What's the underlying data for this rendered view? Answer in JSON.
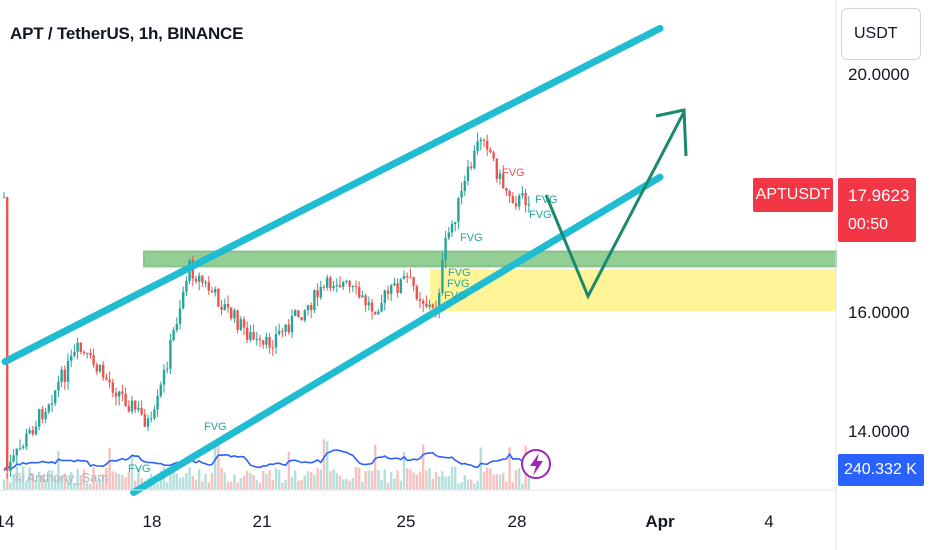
{
  "header": {
    "title": "APT / TetherUS, 1h, BINANCE"
  },
  "toolbar": {
    "currency_label": "USDT"
  },
  "watermark": "© Anthony_Sam",
  "badges": {
    "symbol": "APTUSDT",
    "last_price": "17.9623",
    "countdown": "00:50",
    "volume": "240.332 K",
    "symbol_color": "#f23645",
    "volume_color": "#2962ff"
  },
  "icons": {
    "lightning": "lightning-icon"
  },
  "colors": {
    "up_candle": "#26a69a",
    "down_candle": "#ef5350",
    "channel": "#1fbcd2",
    "resistance_zone": "#4caf50",
    "support_zone": "#fff176",
    "projection_arrow": "#1b8a6b",
    "volume_ma": "#2962ff"
  },
  "chart_data": {
    "type": "candlestick",
    "symbol": "APTUSDT",
    "timeframe": "1h",
    "y_axis": {
      "ticks": [
        "20.0000",
        "16.0000",
        "14.0000"
      ],
      "ylim": [
        13.0,
        21.2
      ]
    },
    "x_axis": {
      "ticks": [
        "14",
        "18",
        "21",
        "25",
        "28",
        "Apr",
        "4"
      ],
      "bold": [
        "Apr"
      ]
    },
    "approx_price_path": [
      {
        "x": "14",
        "price": 13.3
      },
      {
        "x": "16",
        "price": 15.4
      },
      {
        "x": "18",
        "price": 14.1
      },
      {
        "x": "19",
        "price": 16.8
      },
      {
        "x": "21",
        "price": 15.4
      },
      {
        "x": "23",
        "price": 16.6
      },
      {
        "x": "24",
        "price": 16.1
      },
      {
        "x": "25",
        "price": 16.6
      },
      {
        "x": "25.7",
        "price": 16.0
      },
      {
        "x": "26",
        "price": 17.2
      },
      {
        "x": "27",
        "price": 19.1
      },
      {
        "x": "27.5",
        "price": 18.2
      },
      {
        "x": "28",
        "price": 17.9
      },
      {
        "x": "28.3",
        "price": 17.96
      }
    ],
    "drawings": {
      "ascending_channel": {
        "upper": {
          "from": {
            "x": "14",
            "price": 15.2
          },
          "to": {
            "x": "Apr",
            "price": 20.8
          }
        },
        "lower": {
          "from": {
            "x": "17.5",
            "price": 13.0
          },
          "to": {
            "x": "Apr",
            "price": 18.3
          }
        }
      },
      "resistance_zone": {
        "from_price": 16.8,
        "to_price": 17.05
      },
      "support_zone": {
        "from_price": 16.05,
        "to_price": 16.75
      },
      "projection": [
        {
          "x": "28.5",
          "price": 18.0
        },
        {
          "x": "30",
          "price": 16.3
        },
        {
          "x": "Apr",
          "price": 19.5
        }
      ]
    },
    "annotations": [
      {
        "text": "FVG",
        "color": "#26a69a"
      },
      {
        "text": "FVG",
        "color": "#26a69a"
      },
      {
        "text": "FVG",
        "color": "#26a69a"
      },
      {
        "text": "FVG",
        "color": "#ef5350"
      },
      {
        "text": "FVG",
        "color": "#26a69a"
      },
      {
        "text": "FVG",
        "color": "#26a69a"
      },
      {
        "text": "FVG",
        "color": "#26a69a"
      },
      {
        "text": "FVG",
        "color": "#26a69a"
      },
      {
        "text": "FVG",
        "color": "#26a69a"
      }
    ],
    "current_price": 17.9623
  }
}
